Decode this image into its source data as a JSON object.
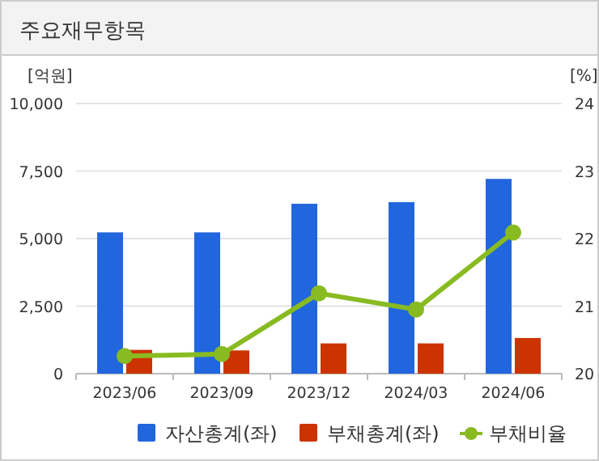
{
  "chart_data": {
    "type": "bar",
    "title": "주요재무항목",
    "ylabel": "[억원]",
    "y2label": "[%]",
    "categories": [
      "2023/06",
      "2023/09",
      "2023/12",
      "2024/03",
      "2024/06"
    ],
    "series": [
      {
        "name": "자산총계(좌)",
        "color": "#2266dd",
        "values": [
          5230,
          5230,
          6290,
          6350,
          7210
        ]
      },
      {
        "name": "부채총계(좌)",
        "color": "#cc3300",
        "values": [
          880,
          860,
          1120,
          1120,
          1320
        ]
      },
      {
        "name": "부채비율",
        "type": "line",
        "axis": "y2",
        "color": "#88bb22",
        "values": [
          20.26,
          20.29,
          21.19,
          20.95,
          22.09
        ]
      }
    ],
    "ylim": [
      0,
      10000
    ],
    "yticks": [
      {
        "value": 0,
        "label": "0"
      },
      {
        "value": 2500,
        "label": "2,500"
      },
      {
        "value": 5000,
        "label": "5,000"
      },
      {
        "value": 7500,
        "label": "7,500"
      },
      {
        "value": 10000,
        "label": "10,000"
      }
    ],
    "y2lim": [
      20,
      24
    ],
    "y2ticks": [
      20,
      21,
      22,
      23,
      24
    ],
    "grid": "y",
    "legend": "bottom",
    "marker": "circle"
  }
}
